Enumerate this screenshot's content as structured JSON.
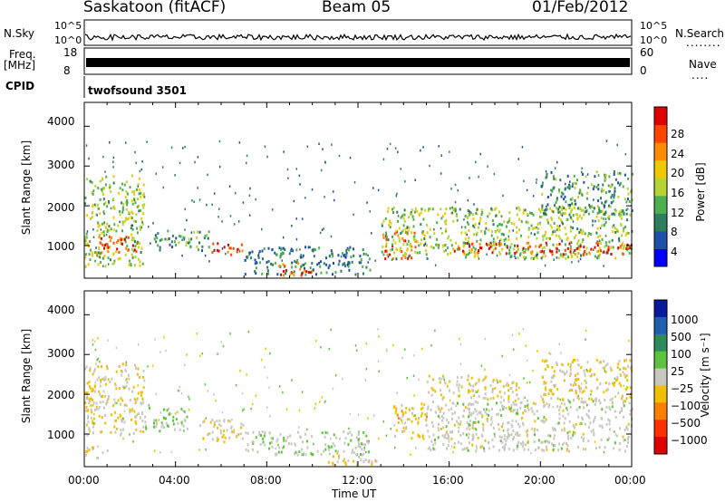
{
  "header": {
    "station": "Saskatoon (fitACF)",
    "beam": "Beam 05",
    "date": "01/Feb/2012"
  },
  "strip": {
    "nsky_label": "N.Sky",
    "nsky_ticks": [
      "10^5",
      "10^0"
    ],
    "nsearch_label": "N.Search",
    "nsearch_ticks": [
      "10^5",
      "10^0"
    ],
    "nsearch_legend": "........",
    "freq_label": "Freq.",
    "freq_unit": "[MHz]",
    "freq_ticks": [
      "18",
      "8"
    ],
    "nave_label": "Nave",
    "nave_ticks": [
      "60",
      "0"
    ],
    "nave_legend": "....",
    "cpid_label": "CPID",
    "cpid_value": "twofsound 3501"
  },
  "power_panel": {
    "ylabel": "Slant Range [km]",
    "yticks": [
      "4000",
      "3000",
      "2000",
      "1000"
    ],
    "colorbar_label": "Power [dB]",
    "colorbar_ticks": [
      "28",
      "24",
      "20",
      "16",
      "12",
      "8",
      "4"
    ],
    "colors": [
      "#0000ff",
      "#1f4fa8",
      "#2e7d5e",
      "#4caf50",
      "#b8d432",
      "#f0c800",
      "#ff8c00",
      "#ff4500",
      "#e00000"
    ]
  },
  "velocity_panel": {
    "ylabel": "Slant Range [km]",
    "yticks": [
      "4000",
      "3000",
      "2000",
      "1000"
    ],
    "colorbar_label": "Velocity [m s⁻¹]",
    "colorbar_ticks": [
      "1000",
      "500",
      "100",
      "25",
      "−25",
      "−100",
      "−500",
      "−1000"
    ],
    "colors": [
      "#0a1a9e",
      "#1f5fb0",
      "#2e8c5c",
      "#5cc43c",
      "#c8c8c0",
      "#f0c000",
      "#ff8000",
      "#ff3000",
      "#e00000"
    ]
  },
  "xaxis": {
    "label": "Time UT",
    "ticks": [
      "00:00",
      "04:00",
      "08:00",
      "12:00",
      "16:00",
      "20:00",
      "00:00"
    ]
  },
  "chart_data": [
    {
      "type": "heatmap",
      "title": "",
      "xlabel": "Time UT",
      "ylabel": "Slant Range [km]",
      "xlim": [
        0,
        24
      ],
      "ylim": [
        180,
        4600
      ],
      "colorbar": "Power [dB]",
      "clim": [
        0,
        30
      ],
      "regions": [
        {
          "t0": 0.0,
          "t1": 2.6,
          "r0": 500,
          "r1": 2800,
          "value": 14
        },
        {
          "t0": 0.5,
          "t1": 2.4,
          "r0": 850,
          "r1": 1300,
          "value": 26
        },
        {
          "t0": 3.0,
          "t1": 5.5,
          "r0": 900,
          "r1": 1400,
          "value": 10
        },
        {
          "t0": 5.5,
          "t1": 7.0,
          "r0": 800,
          "r1": 1100,
          "value": 26
        },
        {
          "t0": 7.0,
          "t1": 12.5,
          "r0": 300,
          "r1": 1000,
          "value": 8
        },
        {
          "t0": 8.5,
          "t1": 10.0,
          "r0": 250,
          "r1": 600,
          "value": 24
        },
        {
          "t0": 13.0,
          "t1": 14.5,
          "r0": 700,
          "r1": 1400,
          "value": 24
        },
        {
          "t0": 13.0,
          "t1": 24.0,
          "r0": 700,
          "r1": 2000,
          "value": 14
        },
        {
          "t0": 16.0,
          "t1": 24.0,
          "r0": 800,
          "r1": 1100,
          "value": 26
        },
        {
          "t0": 20.0,
          "t1": 24.0,
          "r0": 1800,
          "r1": 2900,
          "value": 10
        }
      ]
    },
    {
      "type": "heatmap",
      "title": "",
      "xlabel": "Time UT",
      "ylabel": "Slant Range [km]",
      "xlim": [
        0,
        24
      ],
      "ylim": [
        180,
        4600
      ],
      "colorbar": "Velocity [m s⁻¹]",
      "clim": [
        -1000,
        1000
      ],
      "regions": [
        {
          "t0": 0.0,
          "t1": 2.6,
          "r0": 1000,
          "r1": 2800,
          "value": -100
        },
        {
          "t0": 0.0,
          "t1": 1.0,
          "r0": 400,
          "r1": 700,
          "value": 0
        },
        {
          "t0": 2.5,
          "t1": 4.5,
          "r0": 1100,
          "r1": 1700,
          "value": 100
        },
        {
          "t0": 5.0,
          "t1": 7.0,
          "r0": 800,
          "r1": 1400,
          "value": -100
        },
        {
          "t0": 7.0,
          "t1": 12.5,
          "r0": 500,
          "r1": 1100,
          "value": 50
        },
        {
          "t0": 10.5,
          "t1": 13.0,
          "r0": 250,
          "r1": 500,
          "value": -100
        },
        {
          "t0": 13.5,
          "t1": 15.0,
          "r0": 900,
          "r1": 1800,
          "value": -200
        },
        {
          "t0": 15.0,
          "t1": 24.0,
          "r0": 600,
          "r1": 1900,
          "value": 0
        },
        {
          "t0": 15.0,
          "t1": 19.0,
          "r0": 1900,
          "r1": 2500,
          "value": -100
        },
        {
          "t0": 20.0,
          "t1": 24.0,
          "r0": 1900,
          "r1": 2900,
          "value": -150
        }
      ]
    }
  ]
}
